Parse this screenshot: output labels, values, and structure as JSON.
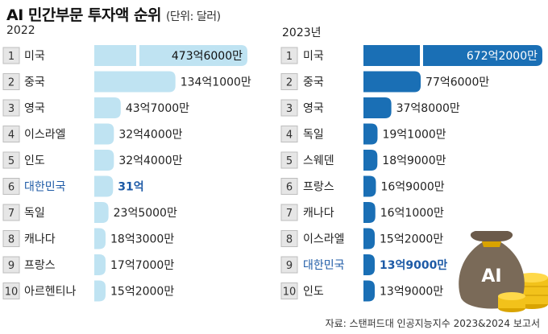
{
  "title": "AI 민간부문 투자액 순위",
  "unit": "(단위: 달러)",
  "source": "자료: 스탠퍼드대 인공지능지수 2023&2024 보고서",
  "colors": {
    "left_bar": "#bfe3f2",
    "right_bar": "#1a6fb5",
    "highlight_text": "#1d5aa6",
    "rank_box_bg": "#e6e6e6"
  },
  "chart_data": [
    {
      "type": "bar",
      "title": "2022",
      "orientation": "horizontal",
      "value_unit": "억 달러",
      "ranks": [
        "1",
        "2",
        "3",
        "4",
        "5",
        "6",
        "7",
        "8",
        "9",
        "10"
      ],
      "categories": [
        "미국",
        "중국",
        "영국",
        "이스라엘",
        "인도",
        "대한민국",
        "독일",
        "캐나다",
        "프랑스",
        "아르헨티나"
      ],
      "values": [
        473.6,
        134.1,
        43.7,
        32.4,
        32.4,
        31,
        23.5,
        18.3,
        17.7,
        15.2
      ],
      "value_labels": [
        "473억6000만",
        "134억1000만",
        "43억7000만",
        "32억4000만",
        "32억4000만",
        "31억",
        "23억5000만",
        "18억3000만",
        "17억7000만",
        "15억2000만"
      ],
      "highlight": "대한민국",
      "axis_break": true
    },
    {
      "type": "bar",
      "title": "2023년",
      "orientation": "horizontal",
      "value_unit": "억 달러",
      "ranks": [
        "1",
        "2",
        "3",
        "4",
        "5",
        "6",
        "7",
        "8",
        "9",
        "10"
      ],
      "categories": [
        "미국",
        "중국",
        "영국",
        "독일",
        "스웨덴",
        "프랑스",
        "캐나다",
        "이스라엘",
        "대한민국",
        "인도"
      ],
      "values": [
        672.2,
        77.6,
        37.8,
        19.1,
        18.9,
        16.9,
        16.1,
        15.2,
        13.9,
        13.9
      ],
      "value_labels": [
        "672억2000만",
        "77억6000만",
        "37억8000만",
        "19억1000만",
        "18억9000만",
        "16억9000만",
        "16억1000만",
        "15억2000만",
        "13억9000만",
        "13억9000만"
      ],
      "highlight": "대한민국",
      "axis_break": true
    }
  ]
}
